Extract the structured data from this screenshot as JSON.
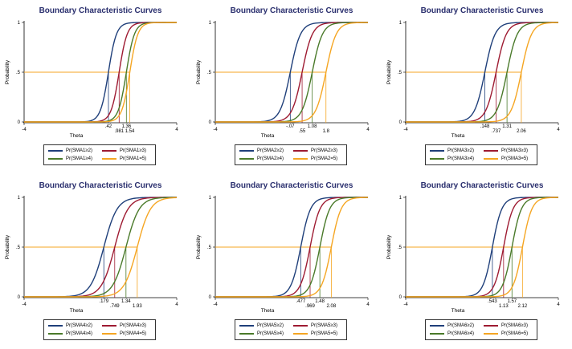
{
  "colors": {
    "series": [
      "#1f3f7a",
      "#9e1b32",
      "#4a7a2a",
      "#f5a623"
    ],
    "threshold": "#f5a623"
  },
  "chart_data": [
    {
      "type": "line",
      "title": "Boundary Characteristic Curves",
      "xlabel": "Theta",
      "ylabel": "Probability",
      "xlim": [
        -4,
        4
      ],
      "ylim": [
        0,
        1
      ],
      "x_ticks": [
        "-4",
        "4"
      ],
      "y_ticks": [
        "0",
        ".5",
        "1"
      ],
      "threshold_y": 0.5,
      "boundary_labels": [
        ".42",
        ".981",
        "1.36",
        "1.54"
      ],
      "series": [
        {
          "name": "Pr(SMA1≥2)",
          "location": 0.42,
          "slope": 2.8
        },
        {
          "name": "Pr(SMA1≥3)",
          "location": 0.981,
          "slope": 2.8
        },
        {
          "name": "Pr(SMA1≥4)",
          "location": 1.36,
          "slope": 2.8
        },
        {
          "name": "Pr(SMA1=5)",
          "location": 1.54,
          "slope": 2.8
        }
      ]
    },
    {
      "type": "line",
      "title": "Boundary Characteristic Curves",
      "xlabel": "Theta",
      "ylabel": "Probability",
      "xlim": [
        -4,
        4
      ],
      "ylim": [
        0,
        1
      ],
      "x_ticks": [
        "-4",
        "4"
      ],
      "y_ticks": [
        "0",
        ".5",
        "1"
      ],
      "threshold_y": 0.5,
      "boundary_labels": [
        "-.07",
        ".55",
        "1.08",
        "1.8"
      ],
      "series": [
        {
          "name": "Pr(SMA2≥2)",
          "location": -0.07,
          "slope": 2.2
        },
        {
          "name": "Pr(SMA2≥3)",
          "location": 0.55,
          "slope": 2.2
        },
        {
          "name": "Pr(SMA2≥4)",
          "location": 1.08,
          "slope": 2.2
        },
        {
          "name": "Pr(SMA2=5)",
          "location": 1.8,
          "slope": 2.2
        }
      ]
    },
    {
      "type": "line",
      "title": "Boundary Characteristic Curves",
      "xlabel": "Theta",
      "ylabel": "Probability",
      "xlim": [
        -4,
        4
      ],
      "ylim": [
        0,
        1
      ],
      "x_ticks": [
        "-4",
        "4"
      ],
      "y_ticks": [
        "0",
        ".5",
        "1"
      ],
      "threshold_y": 0.5,
      "boundary_labels": [
        ".148",
        ".737",
        "1.31",
        "2.06"
      ],
      "series": [
        {
          "name": "Pr(SMA3≥2)",
          "location": 0.148,
          "slope": 2.2
        },
        {
          "name": "Pr(SMA3≥3)",
          "location": 0.737,
          "slope": 2.2
        },
        {
          "name": "Pr(SMA3≥4)",
          "location": 1.31,
          "slope": 2.2
        },
        {
          "name": "Pr(SMA3=5)",
          "location": 2.06,
          "slope": 2.2
        }
      ]
    },
    {
      "type": "line",
      "title": "Boundary Characteristic Curves",
      "xlabel": "Theta",
      "ylabel": "Probability",
      "xlim": [
        -4,
        4
      ],
      "ylim": [
        0,
        1
      ],
      "x_ticks": [
        "-4",
        "4"
      ],
      "y_ticks": [
        "0",
        ".5",
        "1"
      ],
      "threshold_y": 0.5,
      "boundary_labels": [
        ".179",
        ".749",
        "1.34",
        "1.93"
      ],
      "series": [
        {
          "name": "Pr(SMA4≥2)",
          "location": 0.179,
          "slope": 1.7
        },
        {
          "name": "Pr(SMA4≥3)",
          "location": 0.749,
          "slope": 1.7
        },
        {
          "name": "Pr(SMA4≥4)",
          "location": 1.34,
          "slope": 1.7
        },
        {
          "name": "Pr(SMA4=5)",
          "location": 1.93,
          "slope": 1.7
        }
      ]
    },
    {
      "type": "line",
      "title": "Boundary Characteristic Curves",
      "xlabel": "Theta",
      "ylabel": "Probability",
      "xlim": [
        -4,
        4
      ],
      "ylim": [
        0,
        1
      ],
      "x_ticks": [
        "-4",
        "4"
      ],
      "y_ticks": [
        "0",
        ".5",
        "1"
      ],
      "threshold_y": 0.5,
      "boundary_labels": [
        ".477",
        ".969",
        "1.48",
        "2.08"
      ],
      "series": [
        {
          "name": "Pr(SMA5≥2)",
          "location": 0.477,
          "slope": 2.3
        },
        {
          "name": "Pr(SMA5≥3)",
          "location": 0.969,
          "slope": 2.3
        },
        {
          "name": "Pr(SMA5≥4)",
          "location": 1.48,
          "slope": 2.3
        },
        {
          "name": "Pr(SMA5=5)",
          "location": 2.08,
          "slope": 2.3
        }
      ]
    },
    {
      "type": "line",
      "title": "Boundary Characteristic Curves",
      "xlabel": "Theta",
      "ylabel": "Probability",
      "xlim": [
        -4,
        4
      ],
      "ylim": [
        0,
        1
      ],
      "x_ticks": [
        "-4",
        "4"
      ],
      "y_ticks": [
        "0",
        ".5",
        "1"
      ],
      "threshold_y": 0.5,
      "boundary_labels": [
        ".543",
        "1.13",
        "1.57",
        "2.12"
      ],
      "series": [
        {
          "name": "Pr(SMA6≥2)",
          "location": 0.543,
          "slope": 2.4
        },
        {
          "name": "Pr(SMA6≥3)",
          "location": 1.13,
          "slope": 2.4
        },
        {
          "name": "Pr(SMA6≥4)",
          "location": 1.57,
          "slope": 2.4
        },
        {
          "name": "Pr(SMA6=5)",
          "location": 2.12,
          "slope": 2.4
        }
      ]
    }
  ]
}
